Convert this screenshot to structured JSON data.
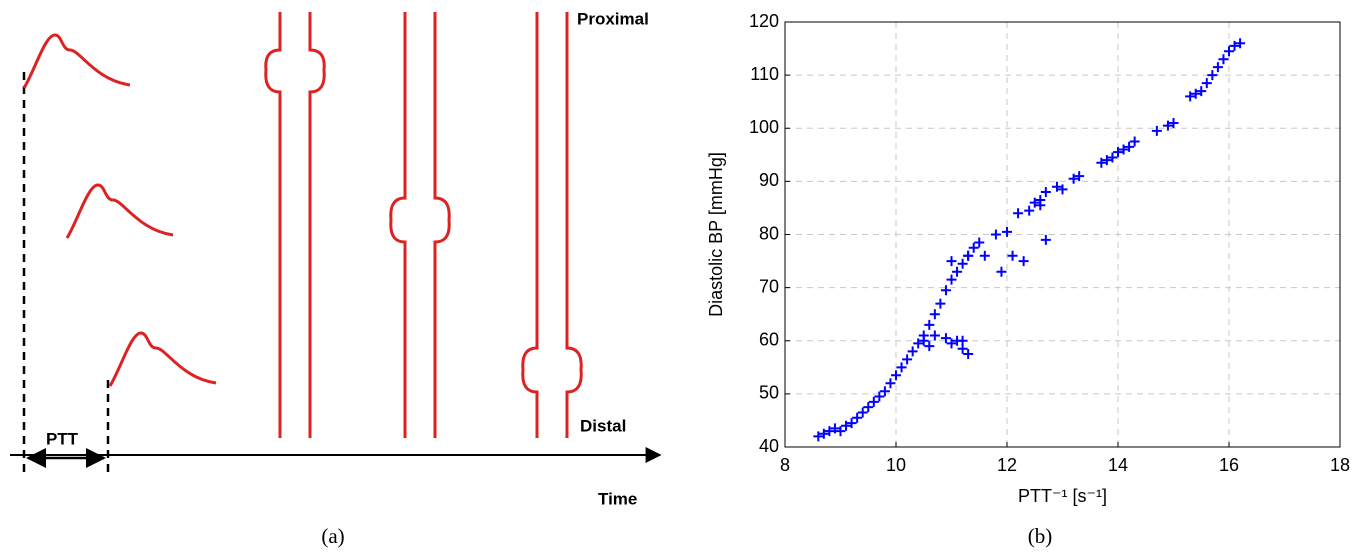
{
  "diagram": {
    "proximal": "Proximal",
    "distal": "Distal",
    "ptt": "PTT",
    "time": "Time"
  },
  "captions": [
    "(a)",
    "(b)"
  ],
  "chart_data": {
    "type": "scatter",
    "xlabel": "PTT⁻¹ [s⁻¹]",
    "ylabel": "Diastolic BP [mmHg]",
    "color": "#0000ff",
    "grid": true,
    "xlim": [
      8,
      18
    ],
    "ylim": [
      40,
      120
    ],
    "xticks": [
      8,
      10,
      12,
      14,
      16,
      18
    ],
    "yticks": [
      40,
      50,
      60,
      70,
      80,
      90,
      100,
      110,
      120
    ],
    "x": [
      8.6,
      8.7,
      8.8,
      8.9,
      9.0,
      9.1,
      9.2,
      9.3,
      9.4,
      9.5,
      9.6,
      9.7,
      9.8,
      9.9,
      10.0,
      10.1,
      10.2,
      10.3,
      10.4,
      10.5,
      10.6,
      10.7,
      10.8,
      10.9,
      11.0,
      11.1,
      11.2,
      11.3,
      11.4,
      11.5,
      10.5,
      10.7,
      10.9,
      11.0,
      11.1,
      11.2,
      11.3,
      10.6,
      11.2,
      11.0,
      11.3,
      11.6,
      11.8,
      11.9,
      12.0,
      12.1,
      12.2,
      12.3,
      12.4,
      12.5,
      12.6,
      12.7,
      12.7,
      12.6,
      12.9,
      13.0,
      13.2,
      13.3,
      13.7,
      13.8,
      13.9,
      14.0,
      14.1,
      14.2,
      14.3,
      14.7,
      14.9,
      15.0,
      15.3,
      15.4,
      15.5,
      15.6,
      15.7,
      15.8,
      15.9,
      16.0,
      16.1,
      16.2
    ],
    "values": [
      42,
      42.5,
      43,
      43.5,
      43,
      44,
      44.5,
      45.5,
      46.5,
      47.5,
      48.5,
      49.5,
      50.5,
      52,
      53.5,
      55,
      56.5,
      58,
      59.5,
      61,
      63,
      65,
      67,
      69.5,
      71.5,
      73,
      74.5,
      76,
      77.5,
      78.5,
      60,
      61,
      60.5,
      59.5,
      60,
      58.5,
      57.5,
      59,
      60,
      75,
      76,
      76,
      80,
      73,
      80.5,
      76,
      84,
      75,
      84.5,
      86,
      86.5,
      88,
      79,
      85.5,
      89,
      88.5,
      90.5,
      91,
      93.5,
      94,
      94.5,
      95.5,
      96,
      96.5,
      97.5,
      99.5,
      100.5,
      101,
      106,
      106.5,
      107,
      108.5,
      110,
      111.5,
      113,
      114.5,
      115.5,
      116
    ]
  }
}
